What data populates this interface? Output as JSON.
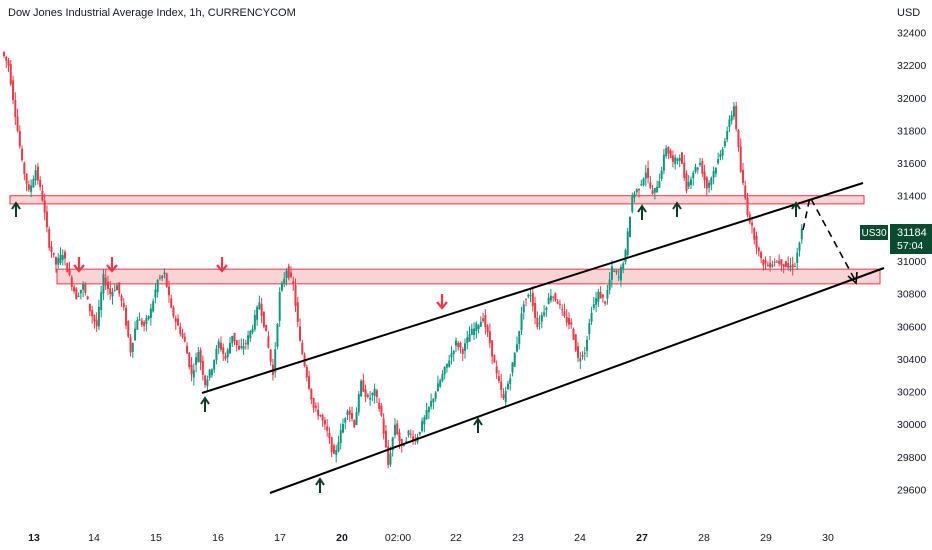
{
  "header": {
    "title": "Dow Jones Industrial Average Index, 1h, CURRENCYCOM",
    "currency": "USD"
  },
  "chart_data": {
    "type": "candlestick",
    "title": "Dow Jones Industrial Average Index, 1h, CURRENCYCOM",
    "y_axis_label": "USD",
    "ylim": [
      29500,
      32500
    ],
    "y_ticks": [
      29600,
      29800,
      30000,
      30200,
      30400,
      30600,
      30800,
      31000,
      31200,
      31400,
      31600,
      31800,
      32000,
      32200,
      32400
    ],
    "x_ticks": [
      {
        "label": "13",
        "bold": true
      },
      {
        "label": "14",
        "bold": false
      },
      {
        "label": "15",
        "bold": false
      },
      {
        "label": "16",
        "bold": false
      },
      {
        "label": "17",
        "bold": false
      },
      {
        "label": "20",
        "bold": true
      },
      {
        "label": "02:00",
        "bold": false
      },
      {
        "label": "22",
        "bold": false
      },
      {
        "label": "23",
        "bold": false
      },
      {
        "label": "24",
        "bold": false
      },
      {
        "label": "27",
        "bold": true
      },
      {
        "label": "28",
        "bold": false
      },
      {
        "label": "29",
        "bold": false
      },
      {
        "label": "30",
        "bold": false
      }
    ],
    "price_path": [
      32280,
      32200,
      31900,
      31600,
      31420,
      31560,
      31380,
      31100,
      30980,
      31050,
      30900,
      30780,
      30850,
      30700,
      30600,
      30900,
      30800,
      30850,
      30700,
      30450,
      30650,
      30600,
      30700,
      30880,
      30920,
      30700,
      30600,
      30500,
      30300,
      30450,
      30250,
      30350,
      30500,
      30400,
      30550,
      30450,
      30500,
      30600,
      30750,
      30550,
      30300,
      30800,
      30950,
      30850,
      30500,
      30300,
      30100,
      30050,
      29950,
      29800,
      29950,
      30100,
      30000,
      30250,
      30150,
      30200,
      30050,
      29750,
      30000,
      29850,
      29950,
      29900,
      30000,
      30100,
      30200,
      30300,
      30400,
      30500,
      30450,
      30550,
      30600,
      30650,
      30500,
      30300,
      30150,
      30300,
      30500,
      30750,
      30800,
      30600,
      30700,
      30800,
      30750,
      30650,
      30600,
      30400,
      30450,
      30700,
      30800,
      30750,
      30950,
      30900,
      31050,
      31400,
      31450,
      31550,
      31400,
      31500,
      31700,
      31600,
      31650,
      31450,
      31550,
      31600,
      31450,
      31550,
      31650,
      31800,
      31950,
      31550,
      31300,
      31150,
      31000,
      30970,
      31000,
      30990,
      30960,
      30980,
      31184
    ],
    "support_resistance_zones": [
      {
        "low": 31350,
        "high": 31400
      },
      {
        "low": 30860,
        "high": 30950
      }
    ],
    "channel_lines": [
      {
        "name": "upper",
        "from": {
          "x": "16",
          "y": 30200
        },
        "to": {
          "x": "30",
          "y": 31480
        }
      },
      {
        "name": "lower",
        "from": {
          "x": "17",
          "y": 29640
        },
        "to": {
          "x": "30",
          "y": 30950
        }
      }
    ],
    "projection": {
      "from": 31410,
      "to": 30880,
      "style": "dashed"
    },
    "arrows": {
      "down_red": 4,
      "up_black": 7
    },
    "price_label": {
      "symbol": "US30",
      "price": "31184",
      "countdown": "57:04",
      "bg_color": "#0a4b32"
    },
    "colors": {
      "up": "#089981",
      "down": "#f23645",
      "zone_fill": "#f7c5c9",
      "zone_border": "#f23645",
      "line": "#000000"
    }
  }
}
